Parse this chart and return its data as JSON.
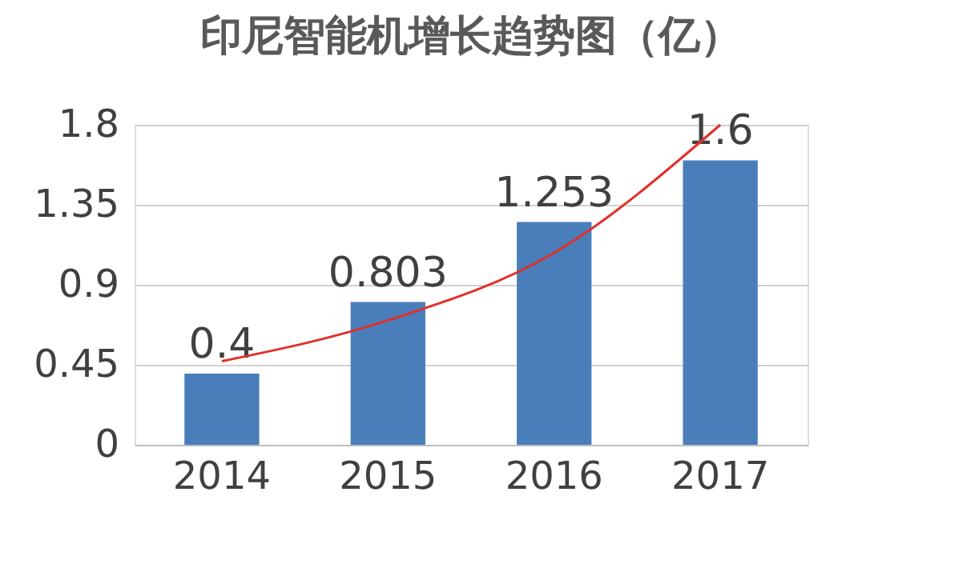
{
  "chart_data": {
    "type": "bar",
    "title": "印尼智能机增长趋势图（亿）",
    "categories": [
      "2014",
      "2015",
      "2016",
      "2017"
    ],
    "series": [
      {
        "type": "bar",
        "color": "#4a7ebb",
        "values": [
          0.4,
          0.803,
          1.253,
          1.6
        ],
        "value_labels": [
          "0.4",
          "0.803",
          "1.253",
          "1.6"
        ]
      },
      {
        "type": "line",
        "color": "#e0302a",
        "values": [
          0.47,
          0.7,
          1.08,
          1.8
        ]
      }
    ],
    "ylim": [
      0,
      1.8
    ],
    "yticks": [
      0,
      0.45,
      0.9,
      1.35,
      1.8
    ],
    "grid": "y"
  }
}
